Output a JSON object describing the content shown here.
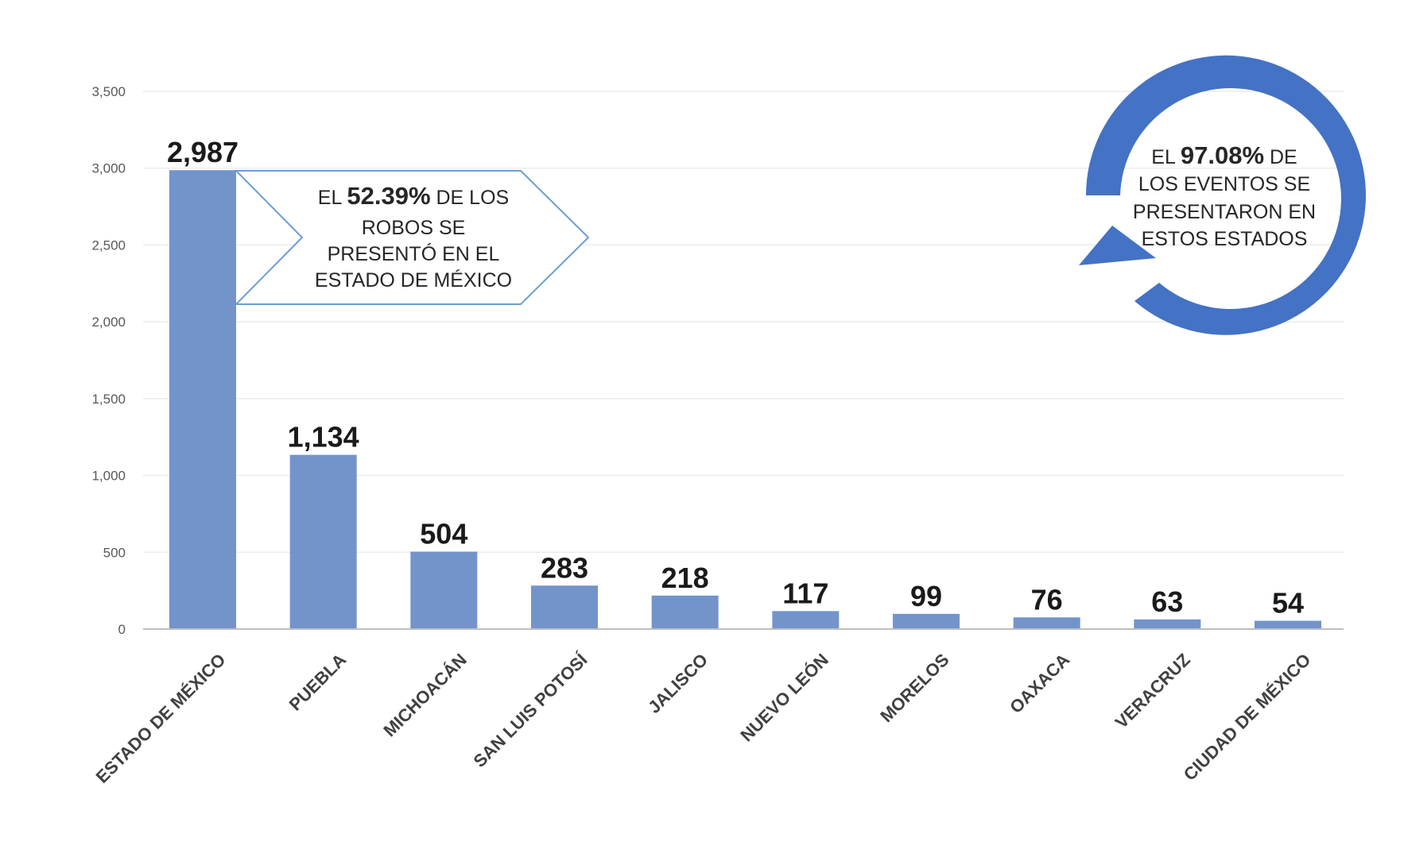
{
  "chart_data": {
    "type": "bar",
    "categories": [
      "ESTADO DE MÉXICO",
      "PUEBLA",
      "MICHOACÁN",
      "SAN LUIS POTOSÍ",
      "JALISCO",
      "NUEVO LEÓN",
      "MORELOS",
      "OAXACA",
      "VERACRUZ",
      "CIUDAD DE MÉXICO"
    ],
    "values": [
      2987,
      1134,
      504,
      283,
      218,
      117,
      99,
      76,
      63,
      54
    ],
    "data_labels": [
      "2,987",
      "1,134",
      "504",
      "283",
      "218",
      "117",
      "99",
      "76",
      "63",
      "54"
    ],
    "title": "",
    "xlabel": "",
    "ylabel": "",
    "ylim": [
      0,
      3500
    ],
    "yticks": [
      0,
      500,
      1000,
      1500,
      2000,
      2500,
      3000,
      3500
    ],
    "ytick_labels": [
      "0",
      "500",
      "1,000",
      "1,500",
      "2,000",
      "2,500",
      "3,000",
      "3,500"
    ],
    "grid": true,
    "bar_color": "#7294cb",
    "annotations": [
      {
        "lines": [
          [
            "EL ",
            "52.39%",
            " DE LOS"
          ],
          [
            "ROBOS SE"
          ],
          [
            "PRESENTÓ EN EL"
          ],
          [
            "ESTADO DE MÉXICO"
          ]
        ],
        "shape": "chevron-arrow",
        "border_color": "#6a9fd4"
      },
      {
        "lines": [
          [
            "EL ",
            "97.08%",
            " DE"
          ],
          [
            "LOS EVENTOS SE"
          ],
          [
            "PRESENTARON EN"
          ],
          [
            "ESTOS ESTADOS"
          ]
        ],
        "shape": "circular-arrow",
        "color": "#4472c4"
      }
    ]
  }
}
